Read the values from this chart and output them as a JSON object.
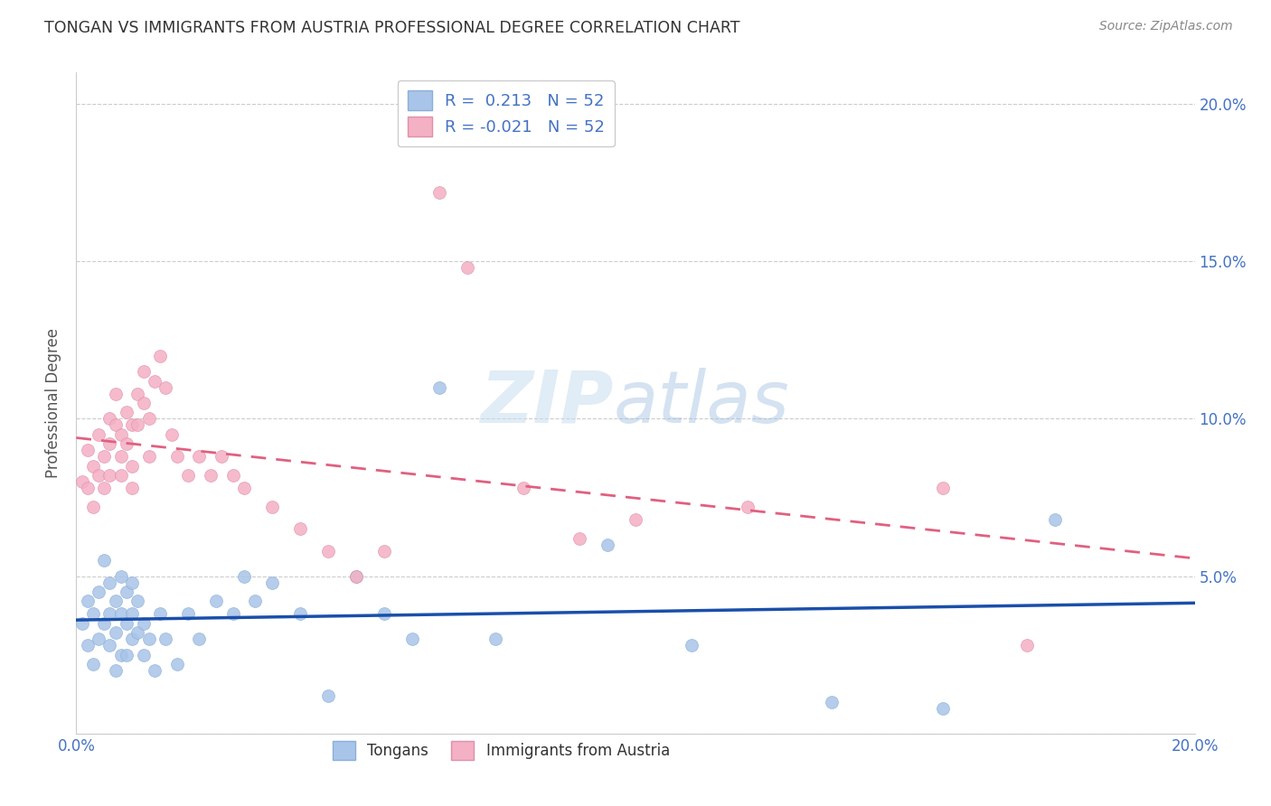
{
  "title": "TONGAN VS IMMIGRANTS FROM AUSTRIA PROFESSIONAL DEGREE CORRELATION CHART",
  "source_text": "Source: ZipAtlas.com",
  "ylabel": "Professional Degree",
  "xlim": [
    0.0,
    0.2
  ],
  "ylim": [
    0.0,
    0.21
  ],
  "ytick_vals": [
    0.0,
    0.05,
    0.1,
    0.15,
    0.2
  ],
  "ytick_labels_right": [
    "",
    "5.0%",
    "10.0%",
    "15.0%",
    "20.0%"
  ],
  "watermark": "ZIPatlas",
  "dot_blue": "#a8c4e8",
  "dot_pink": "#f4b0c4",
  "line_blue": "#1a4faa",
  "line_pink": "#e06080",
  "background_color": "#ffffff",
  "grid_color": "#cccccc",
  "title_color": "#333333",
  "axis_color": "#4472c4",
  "legend_blue_face": "#a8c4e8",
  "legend_pink_face": "#f4b0c4",
  "tongans_x": [
    0.001,
    0.002,
    0.002,
    0.003,
    0.003,
    0.004,
    0.004,
    0.005,
    0.005,
    0.006,
    0.006,
    0.006,
    0.007,
    0.007,
    0.007,
    0.008,
    0.008,
    0.008,
    0.009,
    0.009,
    0.009,
    0.01,
    0.01,
    0.01,
    0.011,
    0.011,
    0.012,
    0.012,
    0.013,
    0.014,
    0.015,
    0.016,
    0.018,
    0.02,
    0.022,
    0.025,
    0.028,
    0.03,
    0.032,
    0.035,
    0.04,
    0.045,
    0.05,
    0.055,
    0.06,
    0.065,
    0.075,
    0.095,
    0.11,
    0.135,
    0.155,
    0.175
  ],
  "tongans_y": [
    0.035,
    0.042,
    0.028,
    0.038,
    0.022,
    0.045,
    0.03,
    0.055,
    0.035,
    0.048,
    0.038,
    0.028,
    0.042,
    0.032,
    0.02,
    0.05,
    0.038,
    0.025,
    0.045,
    0.035,
    0.025,
    0.048,
    0.038,
    0.03,
    0.042,
    0.032,
    0.035,
    0.025,
    0.03,
    0.02,
    0.038,
    0.03,
    0.022,
    0.038,
    0.03,
    0.042,
    0.038,
    0.05,
    0.042,
    0.048,
    0.038,
    0.012,
    0.05,
    0.038,
    0.03,
    0.11,
    0.03,
    0.06,
    0.028,
    0.01,
    0.008,
    0.068
  ],
  "austria_x": [
    0.001,
    0.002,
    0.002,
    0.003,
    0.003,
    0.004,
    0.004,
    0.005,
    0.005,
    0.006,
    0.006,
    0.006,
    0.007,
    0.007,
    0.008,
    0.008,
    0.008,
    0.009,
    0.009,
    0.01,
    0.01,
    0.01,
    0.011,
    0.011,
    0.012,
    0.012,
    0.013,
    0.013,
    0.014,
    0.015,
    0.016,
    0.017,
    0.018,
    0.02,
    0.022,
    0.024,
    0.026,
    0.028,
    0.03,
    0.035,
    0.04,
    0.045,
    0.05,
    0.055,
    0.065,
    0.07,
    0.08,
    0.09,
    0.1,
    0.12,
    0.155,
    0.17
  ],
  "austria_y": [
    0.08,
    0.09,
    0.078,
    0.085,
    0.072,
    0.095,
    0.082,
    0.088,
    0.078,
    0.092,
    0.082,
    0.1,
    0.098,
    0.108,
    0.088,
    0.082,
    0.095,
    0.102,
    0.092,
    0.085,
    0.098,
    0.078,
    0.108,
    0.098,
    0.105,
    0.115,
    0.1,
    0.088,
    0.112,
    0.12,
    0.11,
    0.095,
    0.088,
    0.082,
    0.088,
    0.082,
    0.088,
    0.082,
    0.078,
    0.072,
    0.065,
    0.058,
    0.05,
    0.058,
    0.172,
    0.148,
    0.078,
    0.062,
    0.068,
    0.072,
    0.078,
    0.028
  ]
}
